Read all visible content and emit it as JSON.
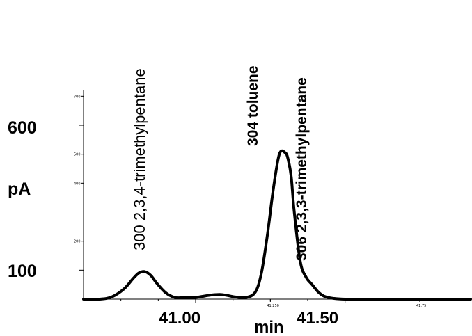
{
  "chart_data": {
    "type": "line",
    "title": "",
    "xlabel": "min",
    "ylabel": "pA",
    "xlim": [
      40.625,
      41.92
    ],
    "ylim": [
      0,
      720
    ],
    "x_major_ticks": [
      "41.00",
      "41.50"
    ],
    "x_major_tick_values": [
      41.0,
      41.5
    ],
    "x_minor_ticks": [
      "41.250",
      "41.75"
    ],
    "x_minor_tick_values": [
      41.25,
      41.75
    ],
    "y_major_labels": [
      "600",
      "100"
    ],
    "y_minor_ticks": [
      "700",
      "500",
      "400",
      "200"
    ],
    "y_minor_tick_values": [
      700,
      500,
      400,
      200
    ],
    "grid": false,
    "series": [
      {
        "x": [
          40.625,
          40.68,
          40.72,
          40.76,
          40.79,
          40.81,
          40.83,
          40.85,
          40.87,
          40.9,
          40.93,
          40.96,
          41.0,
          41.05,
          41.08,
          41.1,
          41.13,
          41.17,
          41.2,
          41.22,
          41.24,
          41.26,
          41.28,
          41.3,
          41.31,
          41.32,
          41.33,
          41.35,
          41.37,
          41.39,
          41.41,
          41.43,
          41.46,
          41.5,
          41.6,
          41.75,
          41.92
        ],
        "y": [
          0,
          0,
          8,
          35,
          70,
          90,
          95,
          82,
          55,
          22,
          6,
          5,
          6,
          14,
          16,
          14,
          8,
          6,
          25,
          90,
          220,
          380,
          500,
          505,
          480,
          420,
          300,
          130,
          75,
          50,
          25,
          10,
          3,
          0,
          0,
          0,
          0
        ]
      }
    ],
    "annotations": [
      {
        "text": "300 2,3,4-trimethylpentane",
        "x": 40.85
      },
      {
        "text": "304 toluene",
        "x": 41.275
      },
      {
        "text": "306 2,3,3-trimethylpentane",
        "x": 41.37
      }
    ]
  }
}
